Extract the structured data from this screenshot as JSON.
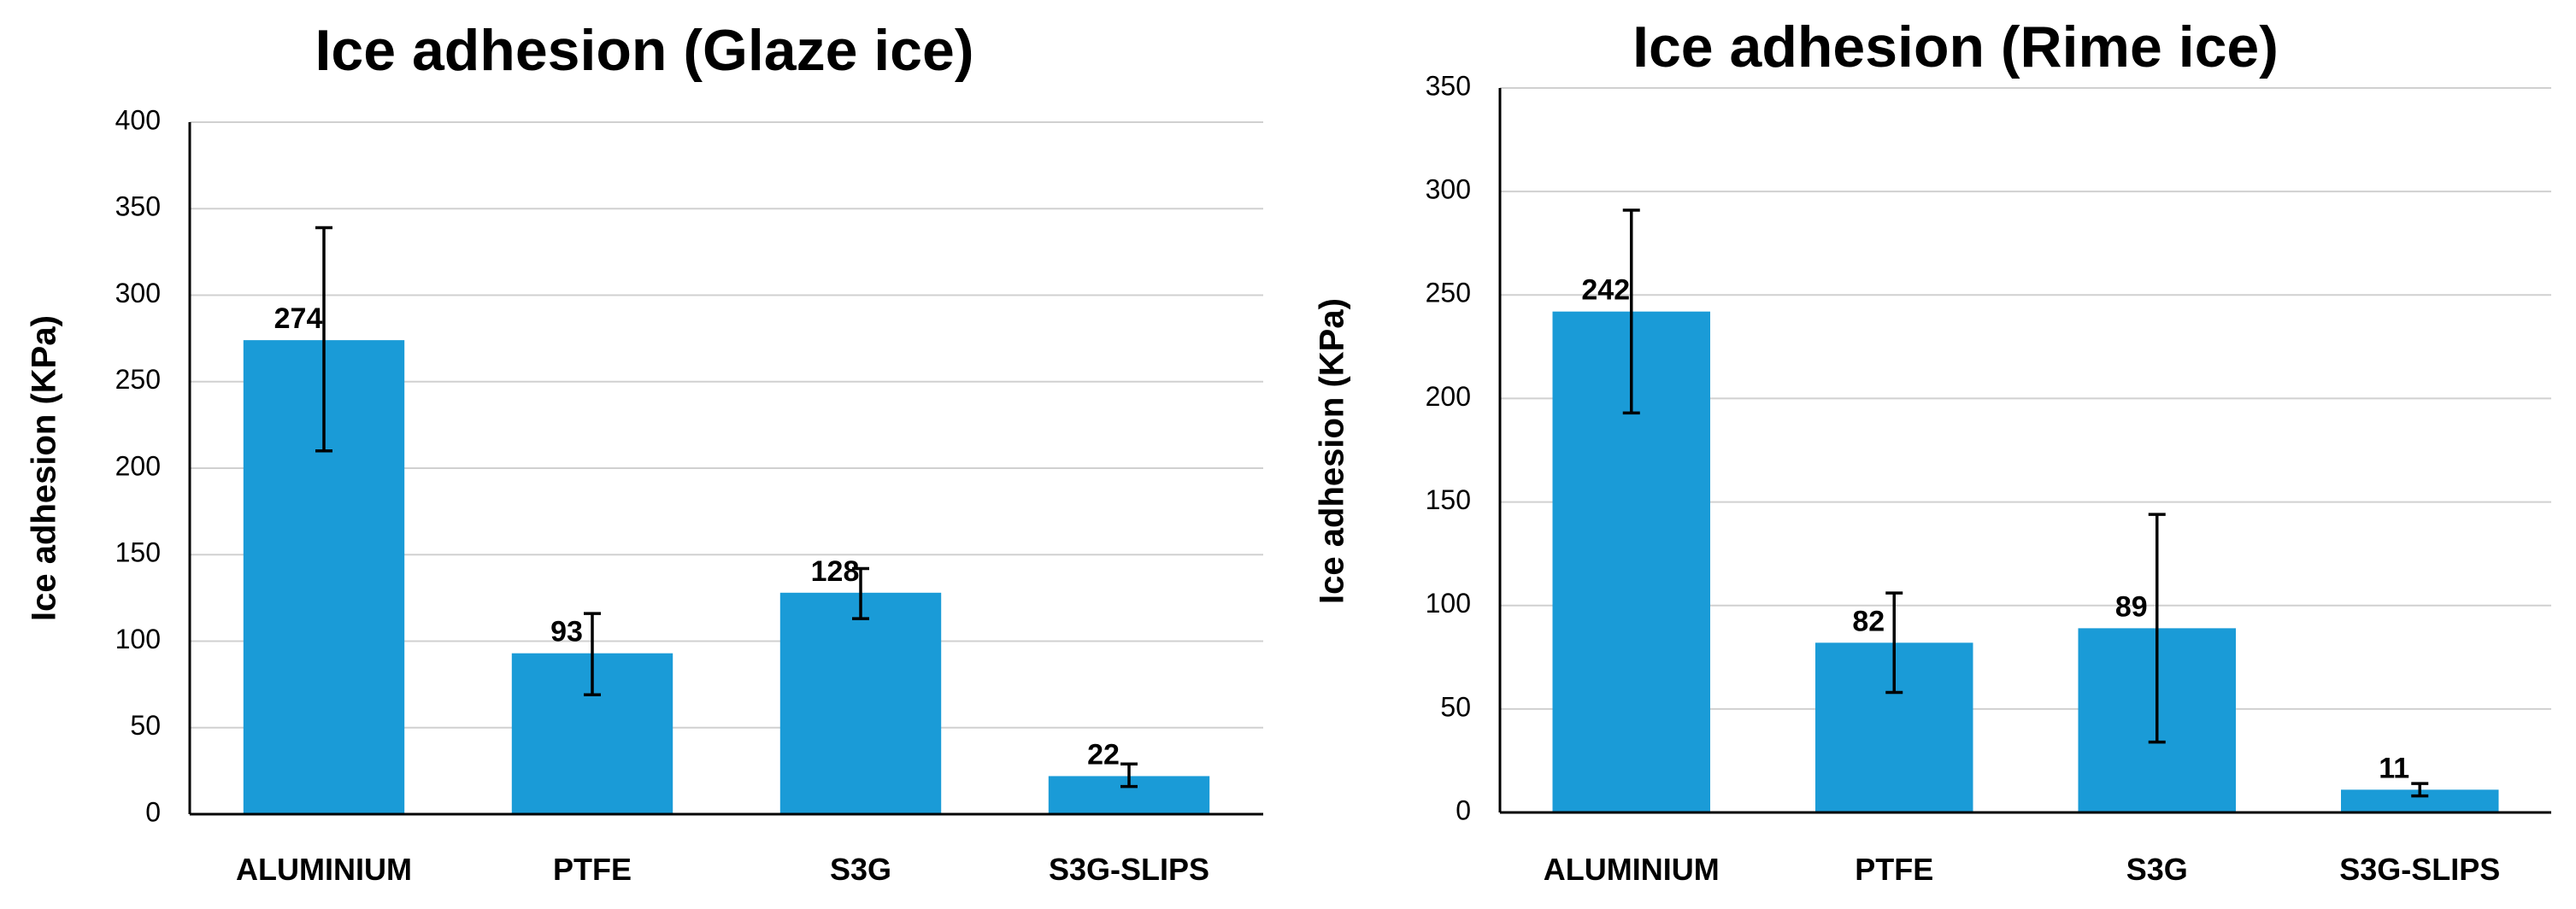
{
  "chart_data": [
    {
      "type": "bar",
      "title": "Ice adhesion (Glaze ice)",
      "xlabel": "",
      "ylabel": "Ice adhesion (KPa)",
      "ylim": [
        0,
        400
      ],
      "yticks": [
        0,
        50,
        100,
        150,
        200,
        250,
        300,
        350,
        400
      ],
      "grid": true,
      "categories": [
        "ALUMINIUM",
        "PTFE",
        "S3G",
        "S3G-SLIPS"
      ],
      "values": [
        274,
        93,
        128,
        22
      ],
      "value_labels": [
        "274",
        "93",
        "128",
        "22"
      ],
      "error_low": [
        210,
        69,
        113,
        16
      ],
      "error_high": [
        339,
        116,
        142,
        29
      ],
      "bar_color": "#1a9bd7"
    },
    {
      "type": "bar",
      "title": "Ice adhesion (Rime ice)",
      "xlabel": "",
      "ylabel": "Ice adhesion (KPa)",
      "ylim": [
        0,
        350
      ],
      "yticks": [
        0,
        50,
        100,
        150,
        200,
        250,
        300,
        350
      ],
      "grid": true,
      "categories": [
        "ALUMINIUM",
        "PTFE",
        "S3G",
        "S3G-SLIPS"
      ],
      "values": [
        242,
        82,
        89,
        11
      ],
      "value_labels": [
        "242",
        "82",
        "89",
        "11"
      ],
      "error_low": [
        193,
        58,
        34,
        8
      ],
      "error_high": [
        291,
        106,
        144,
        14
      ],
      "bar_color": "#1a9bd7"
    }
  ]
}
